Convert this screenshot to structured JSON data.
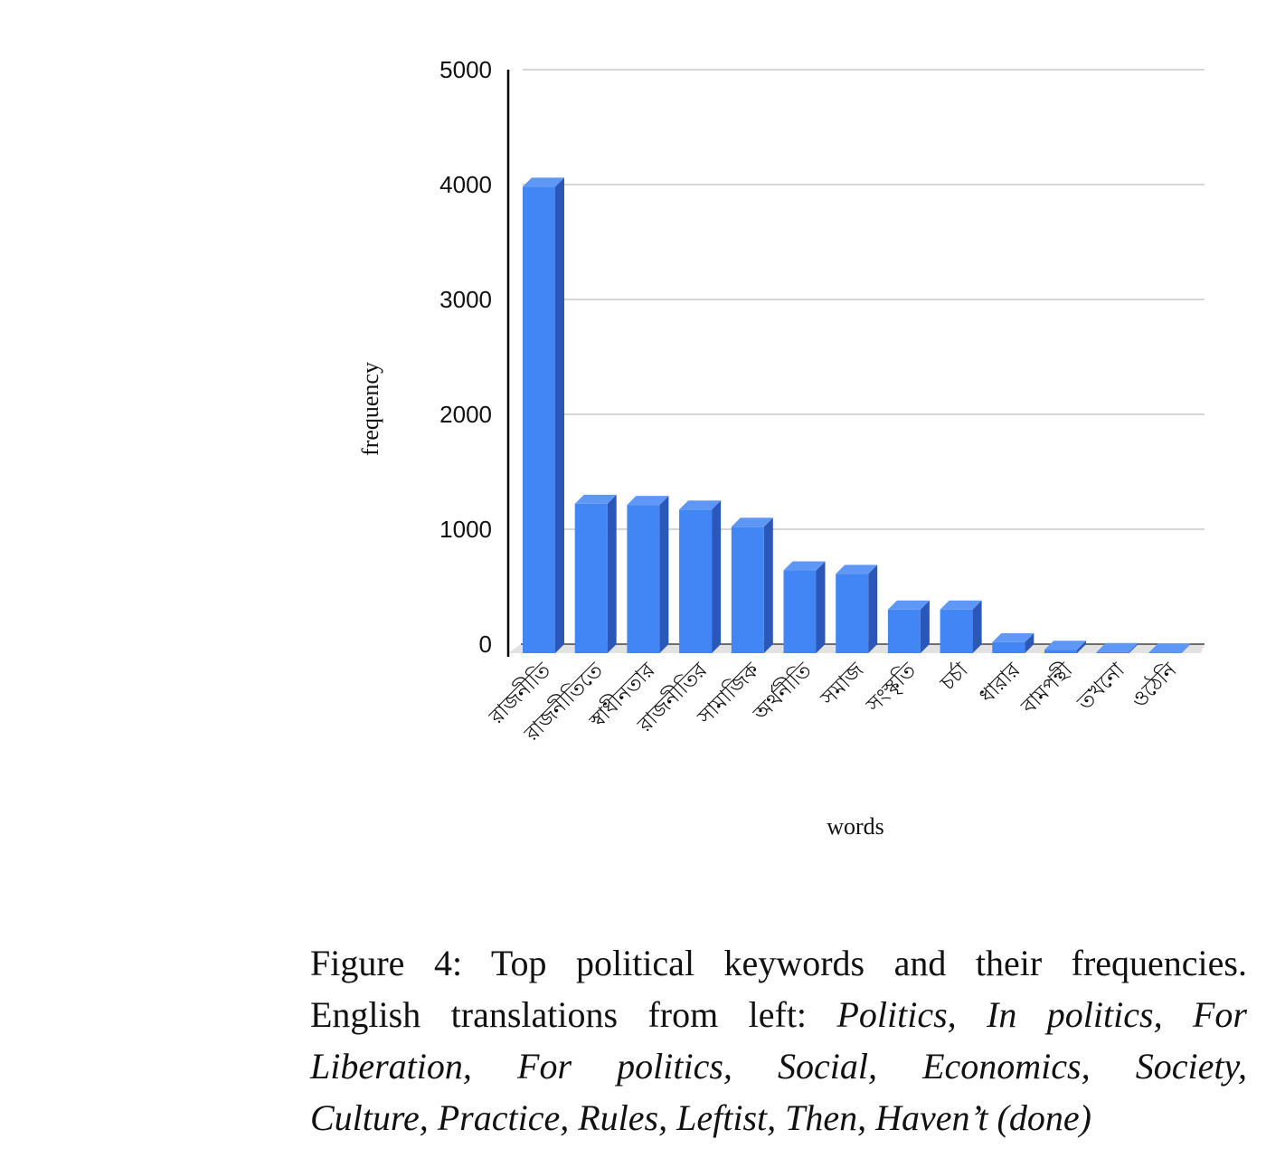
{
  "chart_data": {
    "type": "bar",
    "style": "3d-column",
    "xlabel": "words",
    "ylabel": "frequency",
    "ylim": [
      0,
      5000
    ],
    "yticks": [
      "0",
      "1000",
      "2000",
      "3000",
      "4000",
      "5000"
    ],
    "grid": true,
    "bar_color": "#4285f4",
    "bar_side_color": "#2b58b8",
    "bar_top_color": "#5f97f6",
    "categories": [
      "রাজনীতি",
      "রাজনীতিতে",
      "স্বাধীনতার",
      "রাজনীতির",
      "সামাজিক",
      "অর্থনীতি",
      "সমাজ",
      "সংস্কৃতি",
      "চর্চা",
      "ধারার",
      "বামপন্থী",
      "তখনো",
      "ওঠেনি"
    ],
    "values": [
      4060,
      1300,
      1290,
      1250,
      1100,
      720,
      690,
      380,
      380,
      95,
      30,
      10,
      5
    ]
  },
  "caption": {
    "lead": "Figure 4: Top political keywords and their frequencies.",
    "line2_prefix": "English translations from left: ",
    "line2_italic": "Politics, In politics, For",
    "line3_italic": "Liberation, For politics, Social, Economics, Society,",
    "line4_italic": "Culture, Practice, Rules, Leftist, Then, Haven’t (done)"
  }
}
